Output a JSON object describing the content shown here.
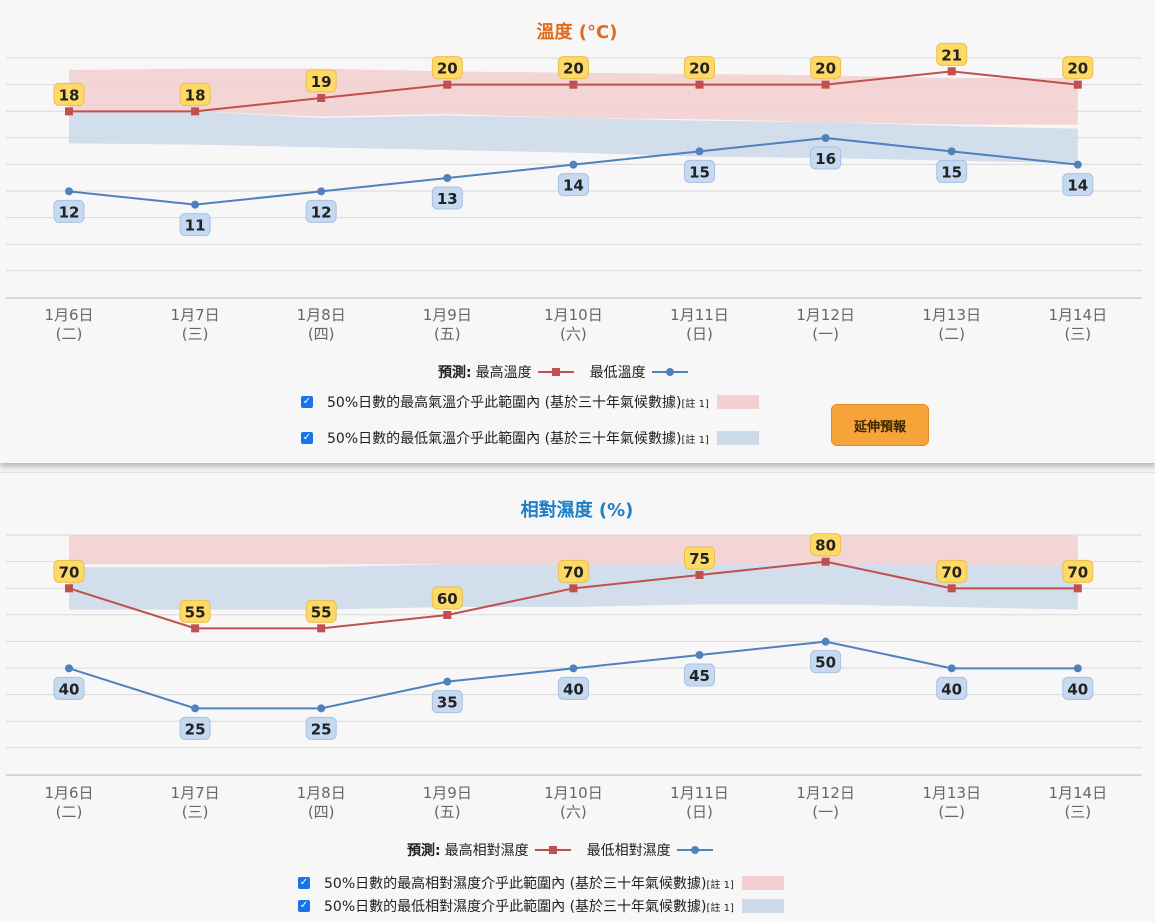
{
  "colors": {
    "max_line": "#c0504d",
    "min_line": "#4f81bd",
    "max_band": "#f2cfd0",
    "min_band": "#cbd9e9",
    "max_label_bg": "#ffd966",
    "min_label_bg": "#c5d9f1",
    "temp_title": "#e06c1f",
    "rh_title": "#1f7fc4",
    "button": "#f6a43a"
  },
  "categories": [
    {
      "date": "1月6日",
      "weekday": "(二)"
    },
    {
      "date": "1月7日",
      "weekday": "(三)"
    },
    {
      "date": "1月8日",
      "weekday": "(四)"
    },
    {
      "date": "1月9日",
      "weekday": "(五)"
    },
    {
      "date": "1月10日",
      "weekday": "(六)"
    },
    {
      "date": "1月11日",
      "weekday": "(日)"
    },
    {
      "date": "1月12日",
      "weekday": "(一)"
    },
    {
      "date": "1月13日",
      "weekday": "(二)"
    },
    {
      "date": "1月14日",
      "weekday": "(三)"
    }
  ],
  "chart_data": [
    {
      "type": "line",
      "title": "溫度 (°C)",
      "ylim": [
        4,
        22
      ],
      "grid": true,
      "series": [
        {
          "name": "最高溫度",
          "values": [
            18,
            18,
            19,
            20,
            20,
            20,
            20,
            21,
            20
          ]
        },
        {
          "name": "最低溫度",
          "values": [
            12,
            11,
            12,
            13,
            14,
            15,
            16,
            15,
            14
          ]
        }
      ],
      "bands": [
        {
          "name": "50%日數的最高氣溫介乎此範圍內",
          "lower": [
            18,
            18,
            17.6,
            17.8,
            17.5,
            17.4,
            17.2,
            17,
            17
          ],
          "upper": [
            21.1,
            21.2,
            21.2,
            21,
            20.9,
            20.8,
            20.7,
            20.5,
            20.5
          ]
        },
        {
          "name": "50%日數的最低氣溫介乎此範圍內",
          "lower": [
            15.6,
            15.5,
            15.3,
            15.1,
            14.9,
            14.6,
            14.5,
            14.3,
            14.1
          ],
          "upper": [
            18,
            18,
            17.5,
            17.7,
            17.5,
            17.3,
            17.2,
            16.9,
            16.7
          ]
        }
      ]
    },
    {
      "type": "line",
      "title": "相對濕度 (%)",
      "ylim": [
        0,
        90
      ],
      "grid": true,
      "series": [
        {
          "name": "最高相對濕度",
          "values": [
            70,
            55,
            55,
            60,
            70,
            75,
            80,
            70,
            70
          ]
        },
        {
          "name": "最低相對濕度",
          "values": [
            40,
            25,
            25,
            35,
            40,
            45,
            50,
            40,
            40
          ]
        }
      ],
      "bands": [
        {
          "name": "50%日數的最高相對濕度介乎此範圍內",
          "lower": [
            79,
            79,
            79,
            79,
            79,
            79,
            79,
            79,
            78
          ],
          "upper": [
            90,
            90,
            90,
            90,
            90,
            90,
            90,
            90,
            90
          ]
        },
        {
          "name": "50%日數的最低相對濕度介乎此範圍內",
          "lower": [
            62,
            62,
            62,
            63,
            63,
            64,
            64,
            63,
            62
          ],
          "upper": [
            78,
            78,
            78,
            79,
            79,
            79,
            79,
            79,
            78
          ]
        }
      ]
    }
  ],
  "temp_panel": {
    "legend_prefix": "預測:",
    "legend_max": "最高溫度",
    "legend_min": "最低溫度",
    "band_max_text": "50%日數的最高氣溫介乎此範圍內 (基於三十年氣候數據)",
    "band_min_text": "50%日數的最低氣溫介乎此範圍內 (基於三十年氣候數據)",
    "note": "[註 1]",
    "button_label": "延伸預報"
  },
  "rh_panel": {
    "legend_prefix": "預測:",
    "legend_max": "最高相對濕度",
    "legend_min": "最低相對濕度",
    "band_max_text": "50%日數的最高相對濕度介乎此範圍內 (基於三十年氣候數據)",
    "band_min_text": "50%日數的最低相對濕度介乎此範圍內 (基於三十年氣候數據)",
    "note": "[註 1]"
  },
  "checkbox_glyph": "✓"
}
